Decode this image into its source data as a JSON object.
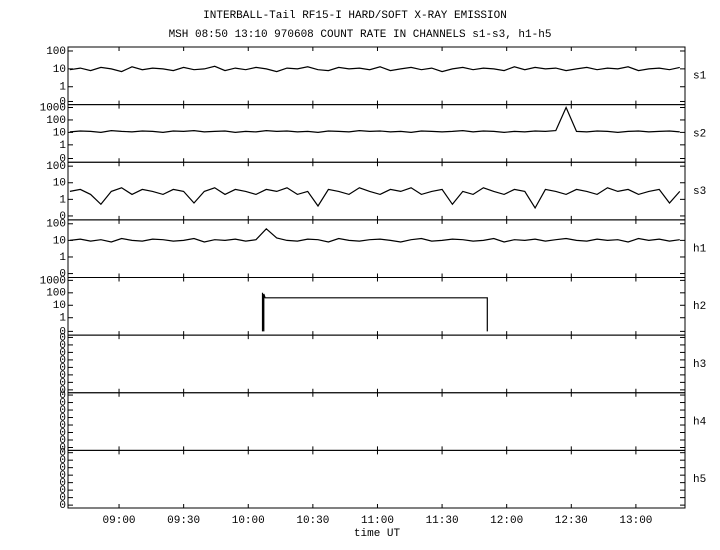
{
  "chart_data": {
    "type": "line",
    "title": "INTERBALL-Tail RF15-I HARD/SOFT X-RAY EMISSION",
    "subtitle": "MSH 08:50 13:10 970608  COUNT RATE IN CHANNELS s1-s3, h1-h5",
    "xlabel": "time UT",
    "xlim": [
      8.605,
      13.38
    ],
    "xticks": [
      {
        "value": 9,
        "label": "09:00"
      },
      {
        "value": 9.5,
        "label": "09:30"
      },
      {
        "value": 10,
        "label": "10:00"
      },
      {
        "value": 10.5,
        "label": "10:30"
      },
      {
        "value": 11,
        "label": "11:00"
      },
      {
        "value": 11.5,
        "label": "11:30"
      },
      {
        "value": 12,
        "label": "12:00"
      },
      {
        "value": 12.5,
        "label": "12:30"
      },
      {
        "value": 13,
        "label": "13:00"
      }
    ],
    "color": "#000000",
    "x": [
      8.62,
      8.7,
      8.78,
      8.86,
      8.94,
      9.02,
      9.1,
      9.18,
      9.26,
      9.34,
      9.42,
      9.5,
      9.58,
      9.66,
      9.74,
      9.82,
      9.9,
      9.98,
      10.06,
      10.14,
      10.22,
      10.3,
      10.38,
      10.46,
      10.54,
      10.62,
      10.7,
      10.78,
      10.86,
      10.94,
      11.02,
      11.1,
      11.18,
      11.26,
      11.34,
      11.42,
      11.5,
      11.58,
      11.66,
      11.74,
      11.82,
      11.9,
      11.98,
      12.06,
      12.14,
      12.22,
      12.3,
      12.38,
      12.46,
      12.54,
      12.62,
      12.7,
      12.78,
      12.86,
      12.94,
      13.02,
      13.1,
      13.18,
      13.26,
      13.34
    ],
    "panels": [
      {
        "name": "s1",
        "log": true,
        "ylim": [
          0.1,
          167
        ],
        "yticks": [
          {
            "value": 0.15,
            "label": "0"
          },
          1,
          10,
          100
        ],
        "values": [
          9,
          11,
          8,
          12,
          10,
          7,
          13,
          9,
          11,
          10,
          8,
          12,
          9,
          10,
          14,
          8,
          11,
          9,
          12,
          10,
          7,
          11,
          10,
          13,
          9,
          8,
          12,
          10,
          11,
          9,
          13,
          8,
          10,
          12,
          9,
          11,
          7,
          10,
          12,
          9,
          11,
          10,
          8,
          13,
          9,
          12,
          10,
          11,
          8,
          10,
          12,
          9,
          11,
          10,
          13,
          8,
          10,
          11,
          9,
          12
        ]
      },
      {
        "name": "s2",
        "log": true,
        "ylim": [
          0.04,
          1700
        ],
        "yticks": [
          {
            "value": 0.08,
            "label": "0"
          },
          1,
          10,
          100,
          1000
        ],
        "values": [
          11,
          13,
          12,
          10,
          14,
          12,
          11,
          13,
          12,
          10,
          13,
          12,
          14,
          11,
          12,
          13,
          10,
          12,
          11,
          14,
          12,
          13,
          11,
          12,
          10,
          13,
          12,
          11,
          14,
          12,
          13,
          11,
          12,
          10,
          13,
          12,
          11,
          12,
          14,
          11,
          13,
          12,
          10,
          12,
          11,
          13,
          12,
          14,
          1000,
          12,
          11,
          13,
          12,
          10,
          12,
          13,
          11,
          12,
          13,
          11
        ]
      },
      {
        "name": "s3",
        "log": true,
        "ylim": [
          0.058,
          172
        ],
        "yticks": [
          {
            "value": 0.1,
            "label": "0"
          },
          1,
          10,
          100
        ],
        "values": [
          3,
          4,
          2,
          0.5,
          3,
          5,
          2,
          4,
          3,
          2,
          4,
          3,
          0.6,
          3,
          5,
          2,
          4,
          3,
          2,
          4,
          3,
          5,
          2,
          3,
          0.4,
          4,
          3,
          2,
          5,
          3,
          2,
          4,
          3,
          5,
          2,
          3,
          4,
          0.5,
          3,
          2,
          5,
          3,
          2,
          4,
          3,
          0.3,
          4,
          3,
          2,
          4,
          3,
          2,
          5,
          3,
          4,
          2,
          3,
          4,
          0.6,
          3
        ]
      },
      {
        "name": "h1",
        "log": true,
        "ylim": [
          0.058,
          172
        ],
        "yticks": [
          {
            "value": 0.1,
            "label": "0"
          },
          1,
          10,
          100
        ],
        "values": [
          10,
          12,
          9,
          11,
          8,
          13,
          10,
          9,
          12,
          11,
          9,
          10,
          13,
          8,
          11,
          10,
          12,
          9,
          11,
          50,
          14,
          10,
          9,
          12,
          11,
          8,
          13,
          10,
          9,
          11,
          12,
          10,
          8,
          11,
          13,
          9,
          10,
          12,
          11,
          9,
          10,
          13,
          8,
          11,
          10,
          12,
          9,
          11,
          13,
          10,
          9,
          12,
          10,
          11,
          8,
          13,
          10,
          12,
          9,
          11
        ]
      },
      {
        "name": "h2",
        "log": true,
        "ylim": [
          0.04,
          1700
        ],
        "yticks": [
          {
            "value": 0.08,
            "label": "0"
          },
          1,
          10,
          100,
          1000
        ],
        "x": [
          10.11,
          10.11,
          10.12,
          10.12,
          10.13,
          11.85,
          11.85
        ],
        "values": [
          0.08,
          100,
          0.08,
          80,
          40,
          40,
          0.08
        ]
      },
      {
        "name": "h3",
        "log": false,
        "ylim": [
          0,
          1
        ],
        "yticks": [
          {
            "value": 0.05,
            "label": "0"
          },
          {
            "value": 0.18,
            "label": "0"
          },
          {
            "value": 0.31,
            "label": "0"
          },
          {
            "value": 0.44,
            "label": "0"
          },
          {
            "value": 0.57,
            "label": "0"
          },
          {
            "value": 0.7,
            "label": "0"
          },
          {
            "value": 0.83,
            "label": "0"
          },
          {
            "value": 0.96,
            "label": "0"
          }
        ]
      },
      {
        "name": "h4",
        "log": false,
        "ylim": [
          0,
          1
        ],
        "yticks": [
          {
            "value": 0.05,
            "label": "0"
          },
          {
            "value": 0.18,
            "label": "0"
          },
          {
            "value": 0.31,
            "label": "0"
          },
          {
            "value": 0.44,
            "label": "0"
          },
          {
            "value": 0.57,
            "label": "0"
          },
          {
            "value": 0.7,
            "label": "0"
          },
          {
            "value": 0.83,
            "label": "0"
          },
          {
            "value": 0.96,
            "label": "0"
          }
        ]
      },
      {
        "name": "h5",
        "log": false,
        "ylim": [
          0,
          1
        ],
        "yticks": [
          {
            "value": 0.05,
            "label": "0"
          },
          {
            "value": 0.18,
            "label": "0"
          },
          {
            "value": 0.31,
            "label": "0"
          },
          {
            "value": 0.44,
            "label": "0"
          },
          {
            "value": 0.57,
            "label": "0"
          },
          {
            "value": 0.7,
            "label": "0"
          },
          {
            "value": 0.83,
            "label": "0"
          },
          {
            "value": 0.96,
            "label": "0"
          }
        ]
      }
    ]
  }
}
